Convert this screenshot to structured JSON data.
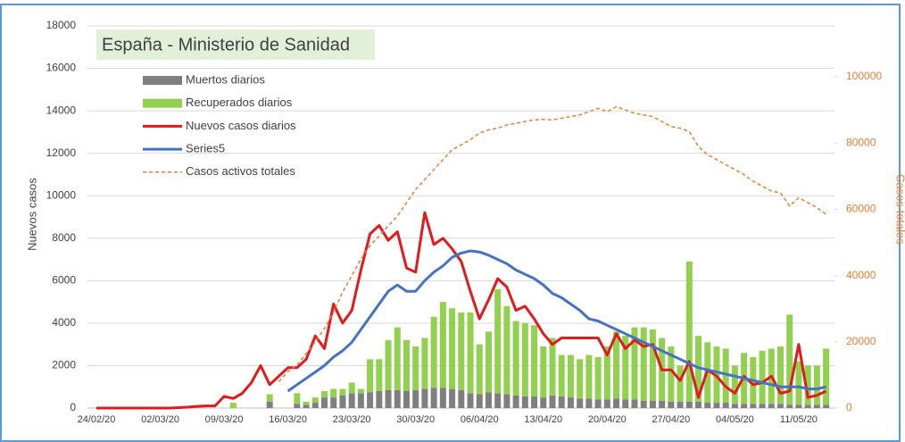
{
  "chart_data": {
    "type": "combo",
    "title": "España - Ministerio de Sanidad",
    "y_label": "Nuevos casos",
    "y2_label": "Casos totales",
    "legend": "upper left",
    "grid": true,
    "ylim": [
      0,
      18000
    ],
    "yticks": [
      0,
      2000,
      4000,
      6000,
      8000,
      10000,
      12000,
      14000,
      16000,
      18000
    ],
    "y2lim": [
      0,
      115385
    ],
    "y2ticks": [
      0,
      20000,
      40000,
      60000,
      80000,
      100000
    ],
    "categories": [
      "24/02/20",
      null,
      null,
      null,
      null,
      null,
      null,
      "02/03/20",
      null,
      null,
      null,
      null,
      null,
      null,
      "09/03/20",
      null,
      null,
      null,
      null,
      null,
      null,
      "16/03/20",
      null,
      null,
      null,
      null,
      null,
      null,
      "23/03/20",
      null,
      null,
      null,
      null,
      null,
      null,
      "30/03/20",
      null,
      null,
      null,
      null,
      null,
      null,
      "06/04/20",
      null,
      null,
      null,
      null,
      null,
      null,
      "13/04/20",
      null,
      null,
      null,
      null,
      null,
      null,
      "20/04/20",
      null,
      null,
      null,
      null,
      null,
      null,
      "27/04/20",
      null,
      null,
      null,
      null,
      null,
      null,
      "04/05/20",
      null,
      null,
      null,
      null,
      null,
      null,
      "11/05/20",
      null,
      null,
      null
    ],
    "series": [
      {
        "name": "Muertos diarios",
        "type": "bar",
        "stack": true,
        "color": "#7f7f7f",
        "values": [
          0,
          0,
          0,
          0,
          0,
          0,
          0,
          0,
          0,
          0,
          0,
          0,
          0,
          0,
          0,
          0,
          0,
          0,
          0,
          300,
          0,
          0,
          200,
          150,
          250,
          500,
          500,
          600,
          700,
          700,
          750,
          800,
          850,
          850,
          800,
          850,
          900,
          950,
          950,
          900,
          850,
          700,
          650,
          750,
          700,
          650,
          600,
          550,
          550,
          500,
          600,
          550,
          500,
          450,
          450,
          400,
          400,
          450,
          400,
          400,
          350,
          350,
          350,
          300,
          300,
          300,
          300,
          250,
          250,
          250,
          200,
          200,
          200,
          200,
          200,
          200,
          150,
          150,
          150,
          150,
          150
        ]
      },
      {
        "name": "Recuperados diarios",
        "type": "bar",
        "stack": true,
        "color": "#92d050",
        "values": [
          0,
          0,
          0,
          0,
          0,
          0,
          0,
          0,
          0,
          0,
          0,
          0,
          0,
          0,
          0,
          250,
          0,
          0,
          0,
          350,
          0,
          0,
          500,
          150,
          250,
          300,
          400,
          300,
          500,
          200,
          1550,
          1500,
          2350,
          2950,
          2400,
          2050,
          2400,
          3350,
          4050,
          3800,
          3650,
          3800,
          2350,
          2850,
          4900,
          4150,
          3500,
          3450,
          3350,
          2400,
          2700,
          1950,
          2000,
          1850,
          2050,
          2000,
          2500,
          3150,
          3000,
          3400,
          3450,
          3350,
          2950,
          2600,
          1700,
          6600,
          3100,
          2850,
          2650,
          2550,
          1800,
          2400,
          2200,
          2500,
          2600,
          2700,
          4250,
          2050,
          1850,
          1850,
          2650
        ]
      },
      {
        "name": "Nuevos casos diarios",
        "type": "line",
        "color": "#e31a1c",
        "width": 3,
        "values": [
          0,
          0,
          0,
          0,
          0,
          0,
          0,
          0,
          0,
          20,
          40,
          80,
          100,
          100,
          550,
          450,
          700,
          1200,
          2000,
          1100,
          1500,
          1900,
          1900,
          2300,
          3400,
          2800,
          4900,
          4000,
          4600,
          6500,
          8200,
          8600,
          7900,
          8300,
          6600,
          6400,
          9200,
          7700,
          8000,
          7500,
          6900,
          5500,
          4200,
          5100,
          6100,
          5700,
          4600,
          4800,
          4200,
          3500,
          3000,
          3300,
          3300,
          3300,
          3300,
          3300,
          2500,
          3500,
          2800,
          3200,
          2900,
          3000,
          1800,
          1800,
          1300,
          2200,
          500,
          1800,
          1500,
          1000,
          700,
          1500,
          1100,
          1200,
          1500,
          700,
          800,
          3000,
          500,
          600,
          800
        ]
      },
      {
        "name": "Series5",
        "type": "line",
        "color": "#4472c4",
        "width": 3,
        "values": [
          null,
          null,
          null,
          null,
          null,
          null,
          null,
          null,
          null,
          null,
          null,
          null,
          null,
          null,
          null,
          null,
          null,
          null,
          null,
          null,
          null,
          800,
          1100,
          1400,
          1700,
          2000,
          2400,
          2700,
          3100,
          3700,
          4300,
          4900,
          5500,
          5800,
          5500,
          5500,
          6000,
          6400,
          6700,
          7100,
          7300,
          7400,
          7350,
          7200,
          7000,
          6800,
          6500,
          6300,
          6100,
          5800,
          5400,
          5200,
          4900,
          4600,
          4200,
          4100,
          3900,
          3700,
          3500,
          3300,
          3100,
          2900,
          2700,
          2500,
          2300,
          2100,
          1900,
          1800,
          1700,
          1600,
          1500,
          1400,
          1300,
          1200,
          1100,
          1000,
          1000,
          1000,
          900,
          900,
          1000
        ]
      },
      {
        "name": "Casos activos totales",
        "type": "line",
        "axis": "y2",
        "dashed": true,
        "color": "#ed7d31",
        "width": 1.5,
        "values": [
          null,
          null,
          null,
          null,
          null,
          null,
          null,
          null,
          null,
          null,
          null,
          null,
          null,
          null,
          null,
          null,
          null,
          null,
          null,
          null,
          8000,
          11000,
          13000,
          16500,
          20000,
          24000,
          29000,
          35000,
          40000,
          45000,
          49000,
          52000,
          55000,
          58000,
          62000,
          66000,
          69000,
          72000,
          75000,
          78000,
          79500,
          81000,
          83000,
          84000,
          84500,
          85500,
          86000,
          86500,
          87000,
          87200,
          87000,
          87500,
          88000,
          88500,
          89500,
          90500,
          89500,
          91000,
          90000,
          89000,
          88500,
          88000,
          86500,
          85000,
          84500,
          83500,
          79000,
          76500,
          75000,
          73500,
          72000,
          70500,
          68500,
          67000,
          65500,
          65000,
          61000,
          63500,
          62000,
          60500,
          58500
        ]
      }
    ]
  }
}
